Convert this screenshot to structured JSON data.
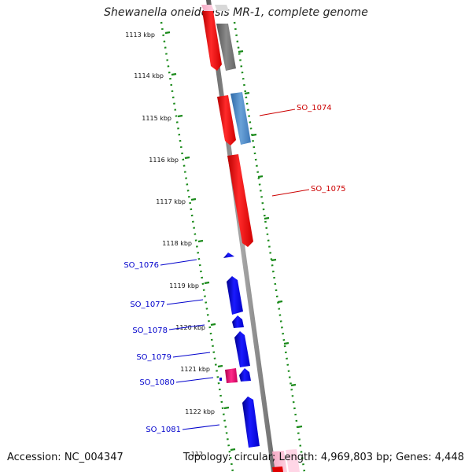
{
  "title": "Shewanella oneidensis MR-1, complete genome",
  "accession": "Accession: NC_004347",
  "summary": "Topology: circular; Length: 4,969,803 bp; Genes: 4,448",
  "colors": {
    "forward_gene": "#ff0000",
    "reverse_gene": "#0000ee",
    "other_gene": "#e0106f",
    "grey_feature": "#707070",
    "steelblue_feature": "#4a86c0",
    "backbone": "#888888",
    "tick": "#1a8a1a",
    "forward_label": "#cc0000",
    "reverse_label": "#0000cc"
  },
  "scale": {
    "tick_labels": [
      "1113 kbp",
      "1114 kbp",
      "1115 kbp",
      "1116 kbp",
      "1117 kbp",
      "1118 kbp",
      "1119 kbp",
      "1120 kbp",
      "1121 kbp",
      "1122 kbp",
      "112"
    ]
  },
  "gene_labels": {
    "forward": [
      "SO_1074",
      "SO_1075"
    ],
    "reverse": [
      "SO_1076",
      "SO_1077",
      "SO_1078",
      "SO_1079",
      "SO_1080",
      "SO_1081"
    ]
  }
}
